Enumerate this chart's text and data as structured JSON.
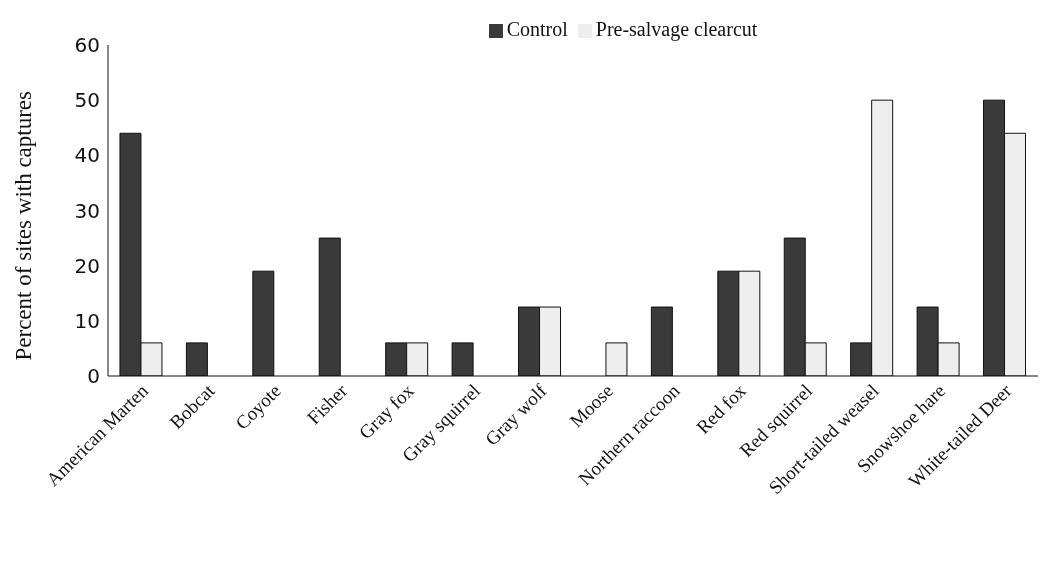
{
  "chart_data": {
    "type": "bar",
    "ylabel": "Percent of sites with captures",
    "categories": [
      "American Marten",
      "Bobcat",
      "Coyote",
      "Fisher",
      "Gray fox",
      "Gray squirrel",
      "Gray wolf",
      "Moose",
      "Northern raccoon",
      "Red fox",
      "Red squirrel",
      "Short-tailed weasel",
      "Snowshoe hare",
      "White-tailed Deer"
    ],
    "series": [
      {
        "name": "Control",
        "color": "#3a3a3a",
        "values": [
          44,
          6,
          19,
          25,
          6,
          6,
          12.5,
          0,
          12.5,
          19,
          25,
          6,
          12.5,
          50
        ]
      },
      {
        "name": "Pre-salvage clearcut",
        "color": "#eeeeee",
        "values": [
          6,
          0,
          0,
          0,
          6,
          0,
          12.5,
          6,
          0,
          19,
          6,
          50,
          6,
          44
        ]
      }
    ],
    "ylim": [
      0,
      60
    ],
    "yticks": [
      0,
      10,
      20,
      30,
      40,
      50,
      60
    ],
    "grid": false,
    "legend": "top"
  }
}
